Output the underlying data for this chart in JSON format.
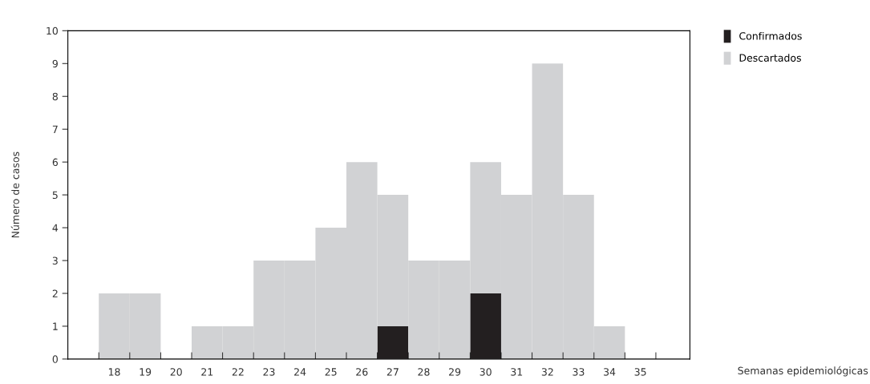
{
  "chart_data": {
    "type": "bar",
    "stacked": true,
    "xlabel": "Semanas epidemiológicas",
    "ylabel": "Número de casos",
    "categories": [
      "18",
      "19",
      "20",
      "21",
      "22",
      "23",
      "24",
      "25",
      "26",
      "27",
      "28",
      "29",
      "30",
      "31",
      "32",
      "33",
      "34",
      "35",
      null
    ],
    "series": [
      {
        "name": "Confirmados",
        "color": "#231f20",
        "values": [
          0,
          0,
          0,
          0,
          0,
          0,
          0,
          0,
          0,
          1,
          0,
          0,
          2,
          0,
          0,
          0,
          0,
          0,
          0
        ]
      },
      {
        "name": "Descartados",
        "color": "#d1d2d4",
        "values": [
          2,
          2,
          0,
          1,
          1,
          3,
          3,
          4,
          6,
          4,
          3,
          3,
          4,
          5,
          9,
          5,
          1,
          0,
          0
        ]
      }
    ],
    "ylim": [
      0,
      10
    ],
    "yticks": [
      0,
      1,
      2,
      3,
      4,
      5,
      6,
      7,
      8,
      9,
      10
    ],
    "grid": false,
    "legend": "top right"
  }
}
